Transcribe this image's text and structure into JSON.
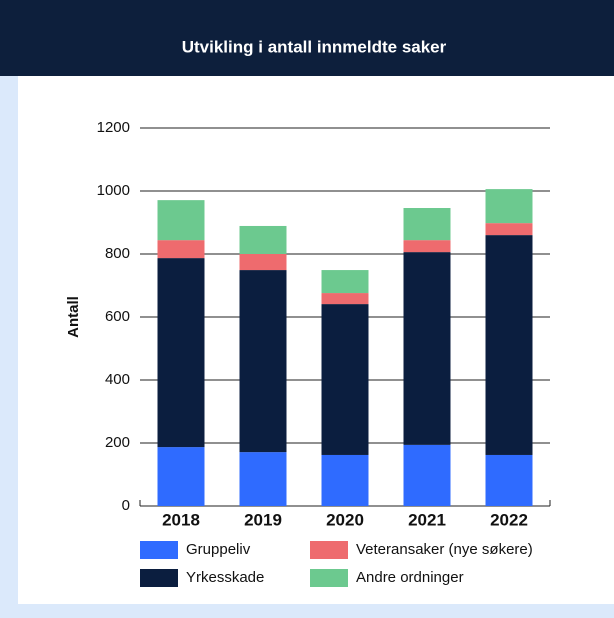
{
  "chart_data": {
    "type": "stacked_bar",
    "title": "Utvikling i antall innmeldte saker",
    "y_label": "Antall",
    "categories": [
      "2018",
      "2019",
      "2020",
      "2021",
      "2022"
    ],
    "series": [
      {
        "name": "Gruppeliv",
        "color": "#2f6bff",
        "values": [
          187,
          171,
          162,
          194,
          162
        ]
      },
      {
        "name": "Yrkesskade",
        "color": "#0b1e3f",
        "values": [
          600,
          578,
          479,
          612,
          698
        ]
      },
      {
        "name": "Veteransaker (nye søkere)",
        "color": "#ee6b6e",
        "values": [
          57,
          51,
          35,
          38,
          38
        ]
      },
      {
        "name": "Andre ordninger",
        "color": "#6cc98f",
        "values": [
          127,
          89,
          73,
          102,
          108
        ]
      }
    ],
    "ylim": [
      0,
      1200
    ],
    "yticks": [
      0,
      200,
      400,
      600,
      800,
      1000,
      1200
    ],
    "grid": true
  }
}
